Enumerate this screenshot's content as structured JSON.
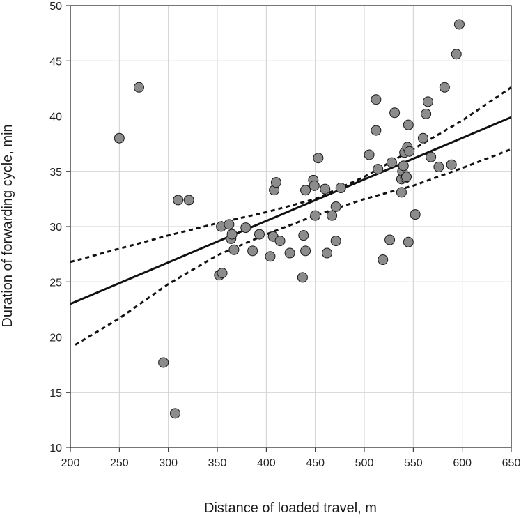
{
  "chart_data": {
    "type": "scatter",
    "title": "",
    "xlabel": "Distance of loaded travel, m",
    "ylabel": "Duration of forwarding cycle, min",
    "xlim": [
      200,
      650
    ],
    "ylim": [
      10,
      50
    ],
    "xticks": [
      200,
      250,
      300,
      350,
      400,
      450,
      500,
      550,
      600,
      650
    ],
    "yticks": [
      10,
      15,
      20,
      25,
      30,
      35,
      40,
      45,
      50
    ],
    "grid": true,
    "legend": "none",
    "colors": {
      "points": "#8c8c8c",
      "point_edge": "#1a1a1a",
      "lines": "#111111",
      "grid": "#cfcfcf"
    },
    "series": [
      {
        "kind": "points",
        "x": [
          250,
          270,
          295,
          307,
          310,
          321,
          352,
          354,
          355,
          362,
          364,
          365,
          367,
          379,
          386,
          393,
          404,
          407,
          408,
          410,
          414,
          424,
          437,
          438,
          440,
          440,
          440,
          448,
          449,
          450,
          453,
          460,
          462,
          467,
          471,
          471,
          476,
          505,
          512,
          512,
          514,
          519,
          526,
          528,
          531,
          538,
          538,
          539,
          540,
          541,
          542,
          543,
          544,
          545,
          545,
          546,
          552,
          560,
          563,
          565,
          568,
          576,
          582,
          589,
          594,
          597
        ],
        "y": [
          38.0,
          42.6,
          17.7,
          13.1,
          32.4,
          32.4,
          25.6,
          30.0,
          25.8,
          30.2,
          28.9,
          29.3,
          27.9,
          29.9,
          27.8,
          29.3,
          27.3,
          29.1,
          33.3,
          34.0,
          28.7,
          27.6,
          25.4,
          29.2,
          33.3,
          27.8,
          33.3,
          34.2,
          33.7,
          31.0,
          36.2,
          33.4,
          27.6,
          31.0,
          31.8,
          28.7,
          33.5,
          36.5,
          41.5,
          38.7,
          35.2,
          27.0,
          28.8,
          35.8,
          40.3,
          33.1,
          34.3,
          35.0,
          35.5,
          36.7,
          34.4,
          34.5,
          37.2,
          28.6,
          39.2,
          36.8,
          31.1,
          38.0,
          40.2,
          41.3,
          36.3,
          35.4,
          42.6,
          35.6,
          45.6,
          48.3
        ]
      },
      {
        "kind": "fit-line",
        "style": "solid",
        "x": [
          200,
          650
        ],
        "y": [
          23.0,
          39.9
        ]
      },
      {
        "kind": "confidence-upper",
        "style": "dashed",
        "x": [
          200,
          250,
          300,
          350,
          400,
          450,
          500,
          550,
          600,
          650
        ],
        "y": [
          26.8,
          28.0,
          29.2,
          30.3,
          31.3,
          32.5,
          34.5,
          37.0,
          39.6,
          42.6
        ]
      },
      {
        "kind": "confidence-lower",
        "style": "dashed",
        "x": [
          205,
          250,
          300,
          350,
          400,
          450,
          500,
          550,
          600,
          650
        ],
        "y": [
          19.3,
          21.7,
          24.8,
          27.4,
          29.3,
          31.0,
          32.5,
          33.7,
          35.3,
          37.0
        ]
      }
    ]
  }
}
